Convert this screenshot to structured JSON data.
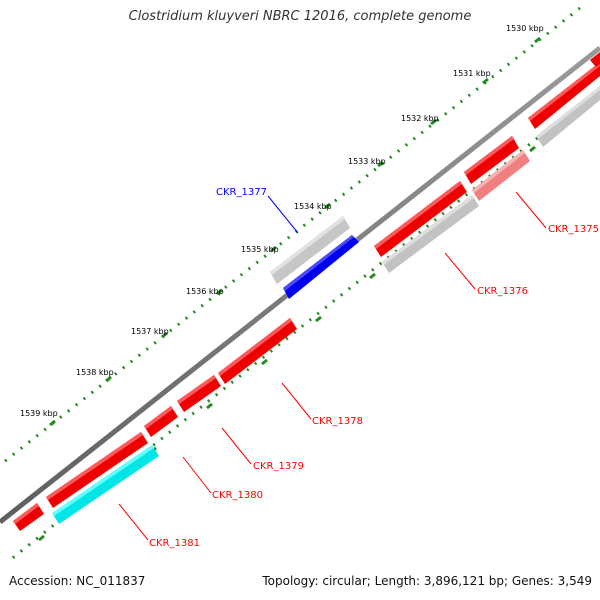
{
  "title": "Clostridium kluyveri NBRC 12016, complete genome",
  "footer": {
    "accession": "Accession: NC_011837",
    "summary": "Topology: circular; Length: 3,896,121 bp; Genes: 3,549"
  },
  "colors": {
    "backbone": "#808080",
    "forward_gene": "#ff0000",
    "selected_gene": "#0000ff",
    "highlight_gene": "#00ffff",
    "rrna_like": "#f08080",
    "pseudo_gene": "#c0c0c0",
    "tick": "#228b22"
  },
  "ticks": [
    {
      "label": "1530 kbp"
    },
    {
      "label": "1531 kbp"
    },
    {
      "label": "1532 kbp"
    },
    {
      "label": "1533 kbp"
    },
    {
      "label": "1534 kbp"
    },
    {
      "label": "1535 kbp"
    },
    {
      "label": "1536 kbp"
    },
    {
      "label": "1537 kbp"
    },
    {
      "label": "1538 kbp"
    },
    {
      "label": "1539 kbp"
    }
  ],
  "gene_labels": [
    {
      "name": "CKR_1377",
      "color": "#0000ff"
    },
    {
      "name": "CKR_1375",
      "color": "#ff0000"
    },
    {
      "name": "CKR_1376",
      "color": "#ff0000"
    },
    {
      "name": "CKR_1378",
      "color": "#ff0000"
    },
    {
      "name": "CKR_1379",
      "color": "#ff0000"
    },
    {
      "name": "CKR_1380",
      "color": "#ff0000"
    },
    {
      "name": "CKR_1381",
      "color": "#ff0000"
    }
  ]
}
